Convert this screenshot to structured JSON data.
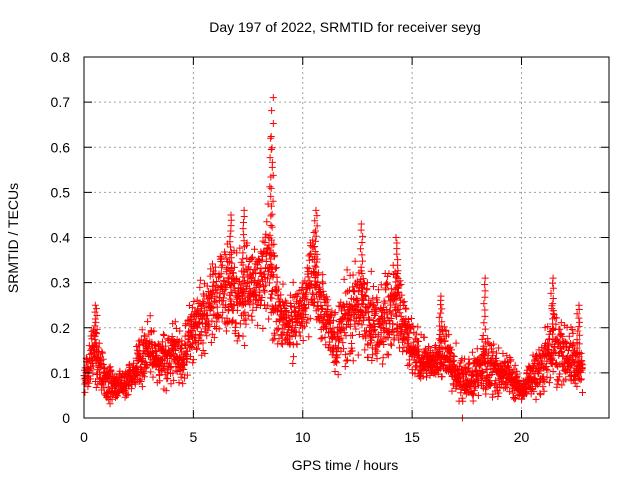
{
  "chart_data": {
    "type": "scatter",
    "title": "Day 197 of 2022, SRMTID for receiver seyg",
    "xlabel": "GPS time / hours",
    "ylabel": "SRMTID / TECUs",
    "xlim": [
      0,
      24
    ],
    "ylim": [
      0,
      0.8
    ],
    "xticks": [
      0,
      5,
      10,
      15,
      20
    ],
    "xtick_labels": [
      "0",
      "5",
      "10",
      "15",
      "20"
    ],
    "yticks": [
      0,
      0.1,
      0.2,
      0.3,
      0.4,
      0.5,
      0.6,
      0.7,
      0.8
    ],
    "ytick_labels": [
      "0",
      "0.1",
      "0.2",
      "0.3",
      "0.4",
      "0.5",
      "0.6",
      "0.7",
      "0.8"
    ],
    "grid": true,
    "marker": "plus",
    "color": "#ff0000",
    "envelope": {
      "description": "Approximate running level (typical value) of the scattered SRMTID points by hour",
      "x": [
        0,
        0.5,
        1,
        1.5,
        2,
        2.5,
        3,
        3.5,
        4,
        4.5,
        5,
        5.5,
        6,
        6.5,
        7,
        7.5,
        8,
        8.5,
        9,
        9.5,
        10,
        10.5,
        11,
        11.5,
        12,
        12.5,
        13,
        13.5,
        14,
        14.5,
        15,
        15.5,
        16,
        16.5,
        17,
        17.5,
        18,
        18.5,
        19,
        19.5,
        20,
        20.5,
        21,
        21.5,
        22,
        22.5,
        22.8
      ],
      "y": [
        0.09,
        0.15,
        0.08,
        0.07,
        0.08,
        0.12,
        0.15,
        0.13,
        0.14,
        0.13,
        0.2,
        0.23,
        0.25,
        0.3,
        0.26,
        0.28,
        0.3,
        0.33,
        0.22,
        0.2,
        0.24,
        0.32,
        0.22,
        0.17,
        0.22,
        0.25,
        0.22,
        0.2,
        0.24,
        0.22,
        0.16,
        0.13,
        0.12,
        0.15,
        0.1,
        0.08,
        0.1,
        0.12,
        0.1,
        0.09,
        0.06,
        0.09,
        0.12,
        0.16,
        0.15,
        0.12,
        0.11
      ],
      "spread": [
        0.03,
        0.06,
        0.03,
        0.03,
        0.03,
        0.04,
        0.05,
        0.04,
        0.05,
        0.05,
        0.06,
        0.07,
        0.07,
        0.09,
        0.08,
        0.07,
        0.07,
        0.1,
        0.07,
        0.06,
        0.06,
        0.08,
        0.07,
        0.06,
        0.08,
        0.09,
        0.08,
        0.07,
        0.08,
        0.07,
        0.05,
        0.04,
        0.04,
        0.05,
        0.04,
        0.04,
        0.05,
        0.05,
        0.04,
        0.03,
        0.02,
        0.03,
        0.05,
        0.07,
        0.05,
        0.05,
        0.04
      ]
    },
    "peaks": [
      {
        "x": 0.55,
        "y": 0.25
      },
      {
        "x": 6.7,
        "y": 0.45
      },
      {
        "x": 7.3,
        "y": 0.46
      },
      {
        "x": 8.6,
        "y": 0.71
      },
      {
        "x": 8.55,
        "y": 0.62
      },
      {
        "x": 10.6,
        "y": 0.46
      },
      {
        "x": 12.7,
        "y": 0.43
      },
      {
        "x": 14.3,
        "y": 0.4
      },
      {
        "x": 16.3,
        "y": 0.27
      },
      {
        "x": 18.3,
        "y": 0.31
      },
      {
        "x": 21.4,
        "y": 0.31
      },
      {
        "x": 22.6,
        "y": 0.25
      }
    ],
    "outlier_min": {
      "x": 17.3,
      "y": 0.0
    }
  }
}
